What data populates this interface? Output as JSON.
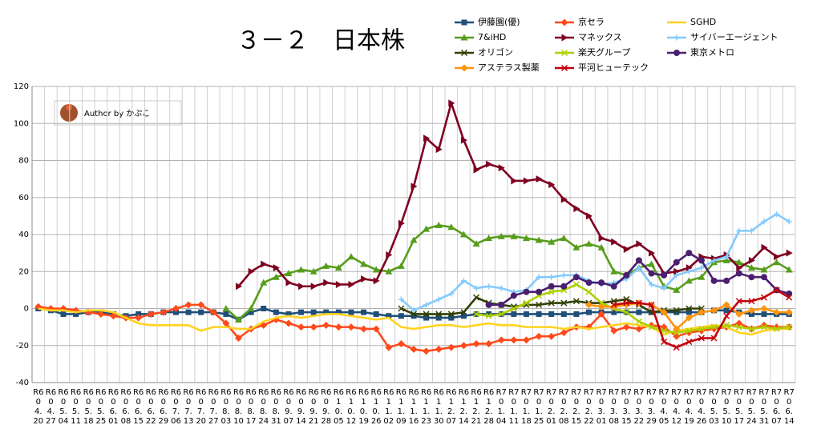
{
  "chart_data": {
    "type": "line",
    "title": "３－２　日本株",
    "annotation": "Author by かぷこ",
    "categories": [
      "R604.20",
      "R604.27",
      "R605.04",
      "R605.11",
      "R605.18",
      "R605.25",
      "R606.01",
      "R606.08",
      "R606.15",
      "R606.22",
      "R606.29",
      "R607.06",
      "R607.13",
      "R607.20",
      "R607.27",
      "R608.03",
      "R608.10",
      "R608.17",
      "R608.24",
      "R608.31",
      "R609.07",
      "R609.14",
      "R609.21",
      "R609.28",
      "R610.05",
      "R610.12",
      "R610.19",
      "R610.26",
      "R611.02",
      "R611.09",
      "R611.16",
      "R611.23",
      "R611.30",
      "R612.07",
      "R612.14",
      "R612.21",
      "R612.28",
      "R701.04",
      "R701.11",
      "R701.18",
      "R701.25",
      "R702.01",
      "R702.08",
      "R702.15",
      "R702.22",
      "R703.01",
      "R703.08",
      "R703.15",
      "R703.22",
      "R703.29",
      "R704.05",
      "R704.12",
      "R704.19",
      "R704.26",
      "R705.03",
      "R705.10",
      "R705.17",
      "R705.24",
      "R705.31",
      "R706.07",
      "R706.14"
    ],
    "ylim": [
      -40,
      120
    ],
    "yticks": [
      -40,
      -20,
      0,
      20,
      40,
      60,
      80,
      100,
      120
    ],
    "grid": true,
    "series": [
      {
        "name": "伊藤園(優)",
        "color": "#1f4e79",
        "marker": "square",
        "values": [
          0,
          -1,
          -3,
          -3,
          -2,
          -2,
          -3,
          -4,
          -3,
          -3,
          -2,
          -2,
          -2,
          -2,
          -2,
          -3,
          -6,
          -2,
          0,
          -2,
          -3,
          -2,
          -2,
          -2,
          -2,
          -2,
          -2,
          -3,
          -4,
          -4,
          -4,
          -5,
          -5,
          -5,
          -4,
          -3,
          -3,
          -3,
          -3,
          -3,
          -3,
          -3,
          -3,
          -3,
          -2,
          -2,
          -2,
          -2,
          -2,
          -2,
          -2,
          -2,
          -2,
          -2,
          -1,
          -1,
          -2,
          -3,
          -3,
          -3,
          -3
        ]
      },
      {
        "name": "京セラ",
        "color": "#ff4a1c",
        "marker": "diamond",
        "values": [
          1,
          0,
          0,
          -1,
          -2,
          -3,
          -4,
          -5,
          -5,
          -3,
          -2,
          0,
          2,
          2,
          -2,
          -8,
          -16,
          -11,
          -9,
          -6,
          -8,
          -10,
          -10,
          -9,
          -10,
          -10,
          -11,
          -11,
          -21,
          -19,
          -22,
          -23,
          -22,
          -21,
          -20,
          -19,
          -19,
          -17,
          -17,
          -17,
          -15,
          -15,
          -13,
          -10,
          -10,
          -3,
          -12,
          -10,
          -11,
          -9,
          -10,
          -15,
          -13,
          -12,
          -11,
          -10,
          -8,
          -11,
          -9,
          -10,
          -10
        ]
      },
      {
        "name": "SGHD",
        "color": "#ffd320",
        "marker": "none",
        "values": [
          0,
          -1,
          -1,
          -2,
          -1,
          -1,
          -2,
          -5,
          -8,
          -9,
          -9,
          -9,
          -9,
          -12,
          -10,
          -10,
          -11,
          -11,
          -7,
          -5,
          -4,
          -5,
          -4,
          -3,
          -3,
          -4,
          -5,
          -6,
          -5,
          -10,
          -11,
          -10,
          -9,
          -9,
          -10,
          -9,
          -8,
          -9,
          -9,
          -10,
          -10,
          -10,
          -11,
          -10,
          -11,
          -10,
          -9,
          -8,
          -9,
          -10,
          -14,
          -12,
          -11,
          -10,
          -9,
          -10,
          -13,
          -14,
          -12,
          -11,
          -11
        ]
      },
      {
        "name": "7&iHD",
        "color": "#579d1c",
        "marker": "triangle",
        "values": [
          null,
          null,
          null,
          null,
          null,
          null,
          null,
          null,
          null,
          null,
          null,
          null,
          null,
          null,
          null,
          0,
          -6,
          0,
          14,
          17,
          19,
          21,
          20,
          23,
          22,
          28,
          24,
          21,
          20,
          23,
          37,
          43,
          45,
          44,
          40,
          35,
          38,
          39,
          39,
          38,
          37,
          36,
          38,
          33,
          35,
          33,
          20,
          18,
          22,
          24,
          12,
          10,
          15,
          17,
          25,
          26,
          25,
          22,
          21,
          25,
          21
        ]
      },
      {
        "name": "マネックス",
        "color": "#7e0021",
        "marker": "tri-right",
        "values": [
          null,
          null,
          null,
          null,
          null,
          null,
          null,
          null,
          null,
          null,
          null,
          null,
          null,
          null,
          null,
          null,
          12,
          20,
          24,
          22,
          14,
          12,
          12,
          14,
          13,
          13,
          16,
          15,
          29,
          46,
          66,
          92,
          86,
          111,
          91,
          75,
          78,
          76,
          69,
          69,
          70,
          67,
          59,
          54,
          50,
          38,
          36,
          32,
          35,
          30,
          19,
          20,
          22,
          28,
          27,
          29,
          22,
          26,
          33,
          28,
          30
        ]
      },
      {
        "name": "サイバーエージェント",
        "color": "#83caff",
        "marker": "plus",
        "values": [
          null,
          null,
          null,
          null,
          null,
          null,
          null,
          null,
          null,
          null,
          null,
          null,
          null,
          null,
          null,
          null,
          null,
          null,
          null,
          null,
          null,
          null,
          null,
          null,
          null,
          null,
          null,
          null,
          null,
          5,
          -1,
          2,
          5,
          8,
          15,
          11,
          12,
          11,
          9,
          10,
          17,
          17,
          18,
          18,
          15,
          13,
          14,
          16,
          22,
          13,
          11,
          18,
          20,
          22,
          26,
          28,
          42,
          42,
          47,
          51,
          47
        ]
      },
      {
        "name": "オリゴン",
        "color": "#314004",
        "marker": "x",
        "values": [
          null,
          null,
          null,
          null,
          null,
          null,
          null,
          null,
          null,
          null,
          null,
          null,
          null,
          null,
          null,
          null,
          null,
          null,
          null,
          null,
          null,
          null,
          null,
          null,
          null,
          null,
          null,
          null,
          null,
          0,
          -3,
          -3,
          -3,
          -3,
          -2,
          6,
          3,
          2,
          1,
          2,
          2,
          3,
          3,
          4,
          3,
          3,
          4,
          5,
          2,
          -2,
          -1,
          -1,
          0,
          0,
          null,
          null,
          null,
          null,
          null,
          null,
          null
        ]
      },
      {
        "name": "楽天グループ",
        "color": "#aecf00",
        "marker": "x",
        "values": [
          null,
          null,
          null,
          null,
          null,
          null,
          null,
          null,
          null,
          null,
          null,
          null,
          null,
          null,
          null,
          null,
          null,
          null,
          null,
          null,
          null,
          null,
          null,
          null,
          null,
          null,
          null,
          null,
          null,
          null,
          null,
          null,
          null,
          null,
          null,
          -3,
          -4,
          -3,
          0,
          3,
          7,
          9,
          10,
          13,
          9,
          3,
          0,
          -2,
          -7,
          -10,
          -12,
          -13,
          -12,
          -11,
          -10,
          -9,
          -10,
          -11,
          -10,
          -11,
          -10
        ]
      },
      {
        "name": "東京メトロ",
        "color": "#4b1f6f",
        "marker": "circle",
        "values": [
          null,
          null,
          null,
          null,
          null,
          null,
          null,
          null,
          null,
          null,
          null,
          null,
          null,
          null,
          null,
          null,
          null,
          null,
          null,
          null,
          null,
          null,
          null,
          null,
          null,
          null,
          null,
          null,
          null,
          null,
          null,
          null,
          null,
          null,
          null,
          null,
          2,
          2,
          7,
          9,
          9,
          12,
          12,
          17,
          14,
          14,
          12,
          18,
          26,
          19,
          18,
          25,
          30,
          26,
          15,
          15,
          19,
          17,
          17,
          10,
          8
        ]
      },
      {
        "name": "アステラス製薬",
        "color": "#ff950e",
        "marker": "diamond",
        "values": [
          null,
          null,
          null,
          null,
          null,
          null,
          null,
          null,
          null,
          null,
          null,
          null,
          null,
          null,
          null,
          null,
          null,
          null,
          null,
          null,
          null,
          null,
          null,
          null,
          null,
          null,
          null,
          null,
          null,
          null,
          null,
          null,
          null,
          null,
          null,
          null,
          null,
          null,
          null,
          null,
          null,
          null,
          null,
          null,
          2,
          1,
          1,
          2,
          3,
          2,
          -2,
          -11,
          -5,
          -2,
          -1,
          2,
          -3,
          -1,
          0,
          -2,
          -2
        ]
      },
      {
        "name": "平河ヒューテック",
        "color": "#c5000b",
        "marker": "x",
        "values": [
          null,
          null,
          null,
          null,
          null,
          null,
          null,
          null,
          null,
          null,
          null,
          null,
          null,
          null,
          null,
          null,
          null,
          null,
          null,
          null,
          null,
          null,
          null,
          null,
          null,
          null,
          null,
          null,
          null,
          null,
          null,
          null,
          null,
          null,
          null,
          null,
          null,
          null,
          null,
          null,
          null,
          null,
          null,
          null,
          null,
          null,
          2,
          3,
          3,
          2,
          -18,
          -21,
          -18,
          -16,
          -16,
          -4,
          4,
          4,
          6,
          10,
          6
        ]
      }
    ]
  }
}
